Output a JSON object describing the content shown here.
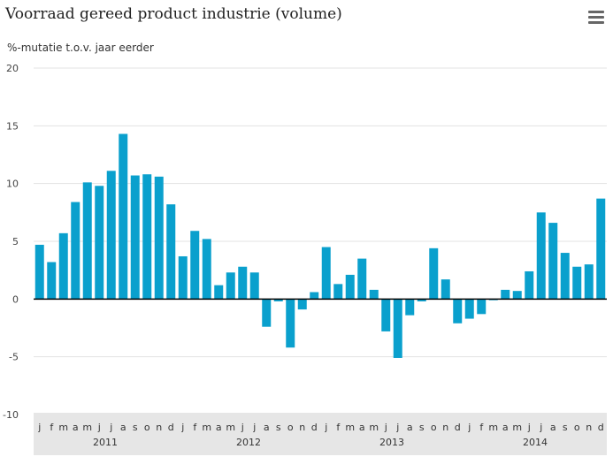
{
  "chart_data": {
    "type": "bar",
    "title": "Voorraad gereed product industrie (volume)",
    "ylabel": "%-mutatie t.o.v. jaar eerder",
    "ylim": [
      -10,
      20
    ],
    "yticks": [
      20,
      15,
      10,
      5,
      0,
      -5,
      -10
    ],
    "grid": true,
    "color": "#0aa0cd",
    "month_labels": [
      "j",
      "f",
      "m",
      "a",
      "m",
      "j",
      "j",
      "a",
      "s",
      "o",
      "n",
      "d"
    ],
    "years": [
      "2011",
      "2012",
      "2013",
      "2014"
    ],
    "categories": [
      "2011-01",
      "2011-02",
      "2011-03",
      "2011-04",
      "2011-05",
      "2011-06",
      "2011-07",
      "2011-08",
      "2011-09",
      "2011-10",
      "2011-11",
      "2011-12",
      "2012-01",
      "2012-02",
      "2012-03",
      "2012-04",
      "2012-05",
      "2012-06",
      "2012-07",
      "2012-08",
      "2012-09",
      "2012-10",
      "2012-11",
      "2012-12",
      "2013-01",
      "2013-02",
      "2013-03",
      "2013-04",
      "2013-05",
      "2013-06",
      "2013-07",
      "2013-08",
      "2013-09",
      "2013-10",
      "2013-11",
      "2013-12",
      "2014-01",
      "2014-02",
      "2014-03",
      "2014-04",
      "2014-05",
      "2014-06",
      "2014-07",
      "2014-08",
      "2014-09",
      "2014-10",
      "2014-11",
      "2014-12"
    ],
    "values": [
      4.7,
      3.2,
      5.7,
      8.4,
      10.1,
      9.8,
      11.1,
      14.3,
      10.7,
      10.8,
      10.6,
      8.2,
      3.7,
      5.9,
      5.2,
      1.2,
      2.3,
      2.8,
      2.3,
      -2.4,
      -0.2,
      -4.2,
      -0.9,
      0.6,
      4.5,
      1.3,
      2.1,
      3.5,
      0.8,
      -2.8,
      -5.1,
      -1.4,
      -0.2,
      4.4,
      1.7,
      -2.1,
      -1.7,
      -1.3,
      -0.1,
      0.8,
      0.7,
      2.4,
      7.5,
      6.6,
      4.0,
      2.8,
      3.0,
      8.7
    ]
  },
  "menu": {
    "icon": "hamburger-menu-icon"
  }
}
